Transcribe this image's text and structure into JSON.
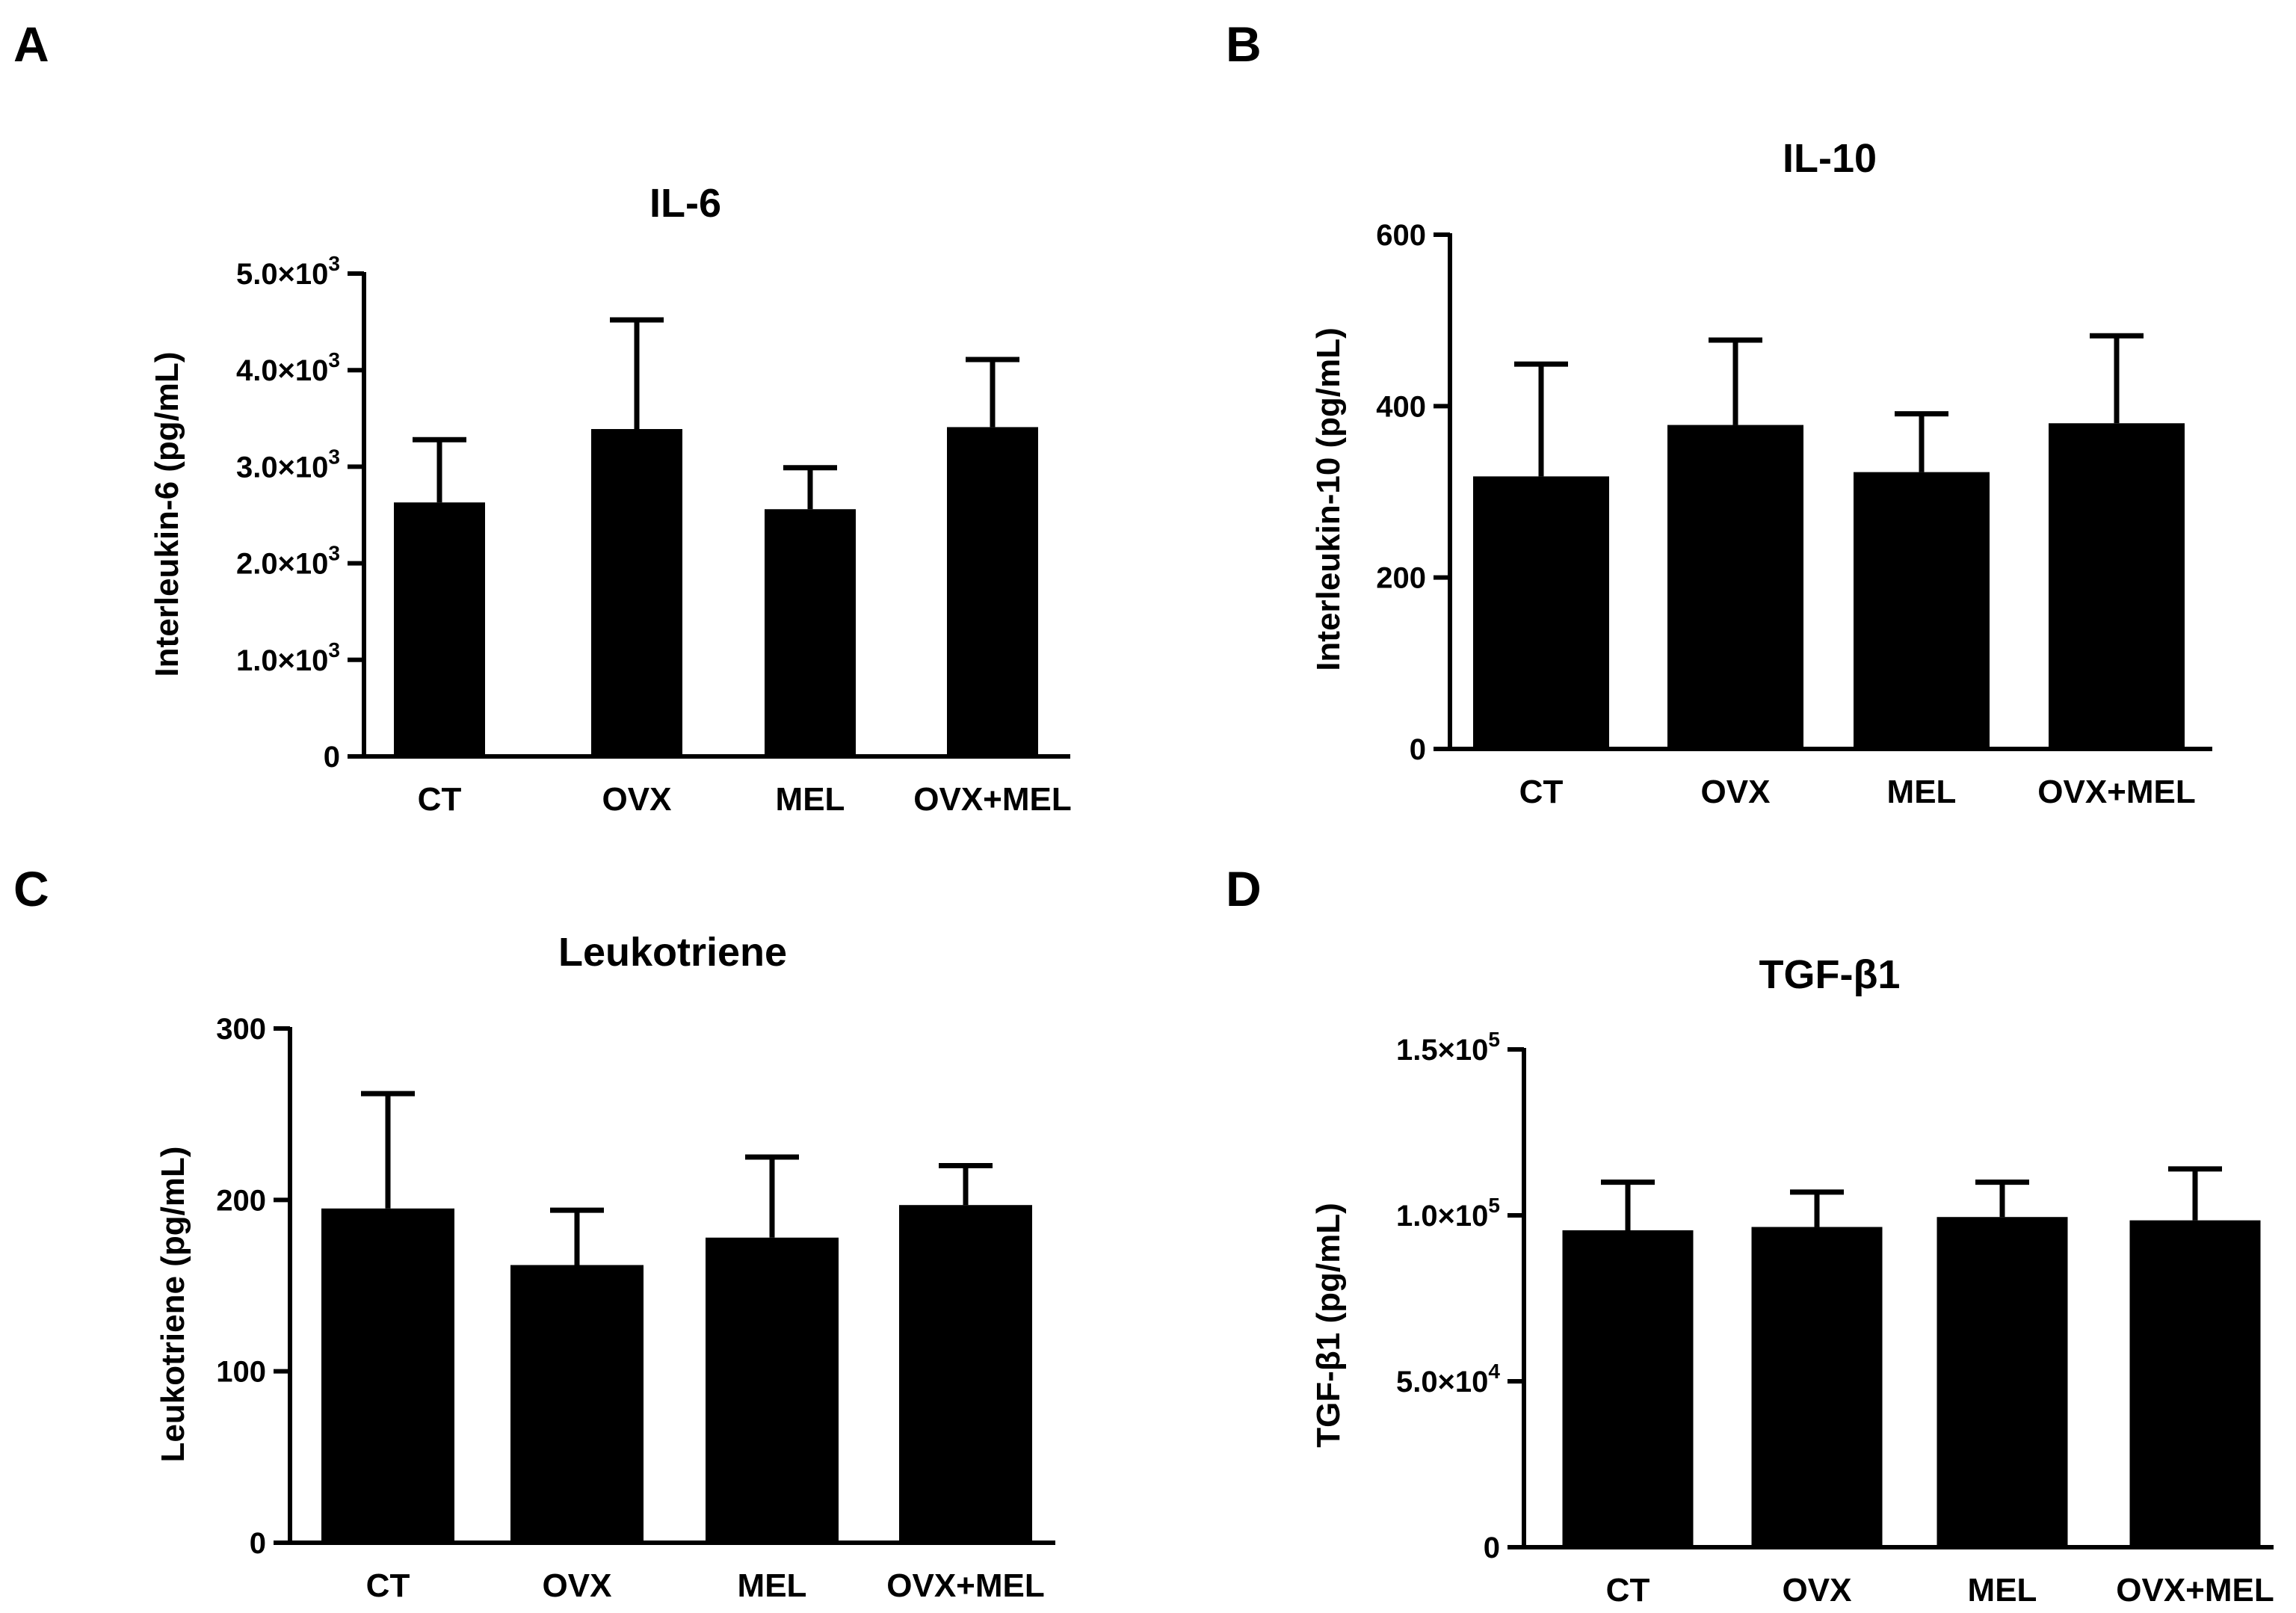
{
  "colors": {
    "bar": "#000000",
    "axis": "#000000",
    "background": "#ffffff"
  },
  "chart_data": [
    {
      "panel": "A",
      "type": "bar",
      "title": "IL-6",
      "xlabel": "",
      "ylabel": "Interleukin-6 (pg/mL)",
      "categories": [
        "CT",
        "OVX",
        "MEL",
        "OVX+MEL"
      ],
      "values": [
        2630,
        3390,
        2560,
        3410
      ],
      "errors": [
        650,
        1130,
        430,
        700
      ],
      "ylim": [
        0,
        5000
      ],
      "yticks": [
        {
          "value": 0,
          "text": "0"
        },
        {
          "value": 1000,
          "text": "1.0×10",
          "exp": "3"
        },
        {
          "value": 2000,
          "text": "2.0×10",
          "exp": "3"
        },
        {
          "value": 3000,
          "text": "3.0×10",
          "exp": "3"
        },
        {
          "value": 4000,
          "text": "4.0×10",
          "exp": "3"
        },
        {
          "value": 5000,
          "text": "5.0×10",
          "exp": "3"
        }
      ]
    },
    {
      "panel": "B",
      "type": "bar",
      "title": "IL-10",
      "xlabel": "",
      "ylabel": "Interleukin-10 (pg/mL)",
      "categories": [
        "CT",
        "OVX",
        "MEL",
        "OVX+MEL"
      ],
      "values": [
        318,
        378,
        323,
        380
      ],
      "errors": [
        131,
        99,
        68,
        102
      ],
      "ylim": [
        0,
        600
      ],
      "yticks": [
        {
          "value": 0,
          "text": "0"
        },
        {
          "value": 200,
          "text": "200"
        },
        {
          "value": 400,
          "text": "400"
        },
        {
          "value": 600,
          "text": "600"
        }
      ]
    },
    {
      "panel": "C",
      "type": "bar",
      "title": "Leukotriene",
      "xlabel": "",
      "ylabel": "Leukotriene (pg/mL)",
      "categories": [
        "CT",
        "OVX",
        "MEL",
        "OVX+MEL"
      ],
      "values": [
        195,
        162,
        178,
        197
      ],
      "errors": [
        67,
        32,
        47,
        23
      ],
      "ylim": [
        0,
        300
      ],
      "yticks": [
        {
          "value": 0,
          "text": "0"
        },
        {
          "value": 100,
          "text": "100"
        },
        {
          "value": 200,
          "text": "200"
        },
        {
          "value": 300,
          "text": "300"
        }
      ]
    },
    {
      "panel": "D",
      "type": "bar",
      "title": "TGF-β1",
      "xlabel": "",
      "ylabel": "TGF-β1 (pg/mL)",
      "categories": [
        "CT",
        "OVX",
        "MEL",
        "OVX+MEL"
      ],
      "values": [
        95500,
        96500,
        99500,
        98500
      ],
      "errors": [
        14500,
        10500,
        10500,
        15500
      ],
      "ylim": [
        0,
        150000
      ],
      "yticks": [
        {
          "value": 0,
          "text": "0"
        },
        {
          "value": 50000,
          "text": "5.0×10",
          "exp": "4"
        },
        {
          "value": 100000,
          "text": "1.0×10",
          "exp": "5"
        },
        {
          "value": 150000,
          "text": "1.5×10",
          "exp": "5"
        }
      ]
    }
  ]
}
